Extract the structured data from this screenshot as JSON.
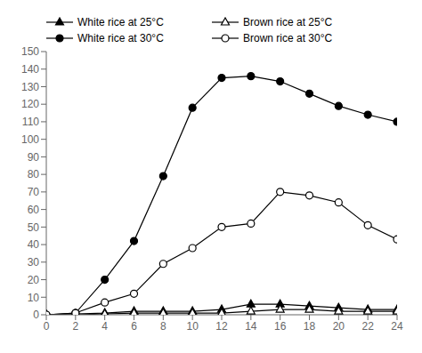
{
  "chart_data": {
    "type": "line",
    "x": [
      0,
      2,
      4,
      6,
      8,
      10,
      12,
      14,
      16,
      18,
      20,
      22,
      24
    ],
    "xlim": [
      0,
      24
    ],
    "xticks": [
      0,
      2,
      4,
      6,
      8,
      10,
      12,
      14,
      16,
      18,
      20,
      22,
      24
    ],
    "ylim": [
      0,
      150
    ],
    "yticks": [
      0,
      10,
      20,
      30,
      40,
      50,
      60,
      70,
      80,
      90,
      100,
      110,
      120,
      130,
      140,
      150
    ],
    "grid": false,
    "legend": "upper left",
    "series": [
      {
        "name": "White rice at 25°C",
        "color": "#000000",
        "marker": "filled-triangle",
        "values": [
          0,
          0.5,
          1,
          2,
          2,
          2,
          3,
          6,
          6,
          5,
          4,
          3,
          3
        ]
      },
      {
        "name": "Brown rice at 25°C",
        "color": "#000000",
        "marker": "open-triangle",
        "values": [
          0,
          0,
          0.5,
          1,
          1,
          1,
          1,
          2,
          3,
          3,
          2,
          2,
          2
        ]
      },
      {
        "name": "White rice at 30°C",
        "color": "#000000",
        "marker": "filled-circle",
        "values": [
          0,
          1,
          20,
          42,
          79,
          118,
          135,
          136,
          133,
          126,
          119,
          114,
          110
        ]
      },
      {
        "name": "Brown rice at 30°C",
        "color": "#000000",
        "marker": "open-circle",
        "values": [
          0,
          1,
          7,
          12,
          29,
          38,
          50,
          52,
          70,
          68,
          64,
          51,
          43
        ]
      }
    ]
  }
}
